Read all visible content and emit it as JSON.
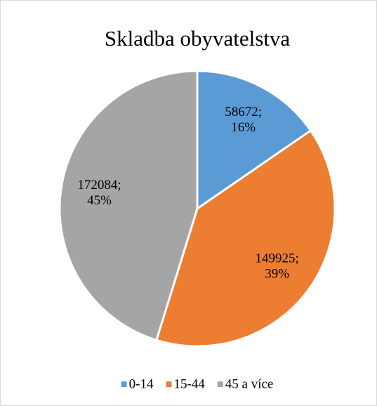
{
  "chart_data": {
    "type": "pie",
    "title": "Skladba obyvatelstva",
    "categories": [
      "0-14",
      "15-44",
      "45 a více"
    ],
    "values": [
      58672,
      149925,
      172084
    ],
    "value_labels": [
      "58672; 16%",
      "149925; 39%",
      "172084; 45%"
    ],
    "colors": [
      "#5b9bd5",
      "#ed7d31",
      "#a5a5a5"
    ],
    "legend": "bottom"
  }
}
